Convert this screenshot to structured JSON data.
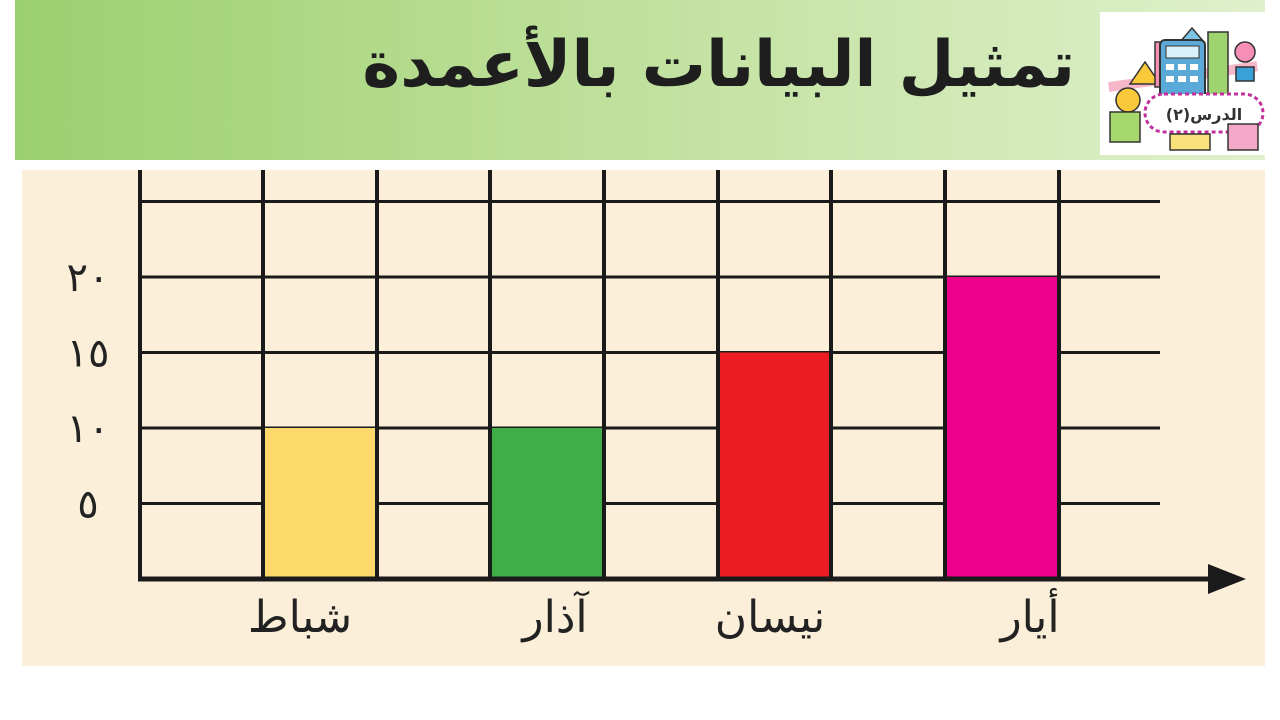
{
  "header": {
    "title": "تمثيل البيانات بالأعمدة"
  },
  "badge": {
    "label": "الدرس(٢)"
  },
  "chart_data": {
    "type": "bar",
    "categories": [
      "شباط",
      "آذار",
      "نيسان",
      "أيار"
    ],
    "values": [
      10,
      10,
      15,
      20
    ],
    "colors": [
      "#fcd96a",
      "#3fae49",
      "#ec1c24",
      "#ec008c"
    ],
    "yticks": [
      {
        "value": 5,
        "label": "٥"
      },
      {
        "value": 10,
        "label": "١٠"
      },
      {
        "value": 15,
        "label": "١٥"
      },
      {
        "value": 20,
        "label": "٢٠"
      }
    ],
    "ylim": [
      0,
      25
    ],
    "grid": true
  }
}
